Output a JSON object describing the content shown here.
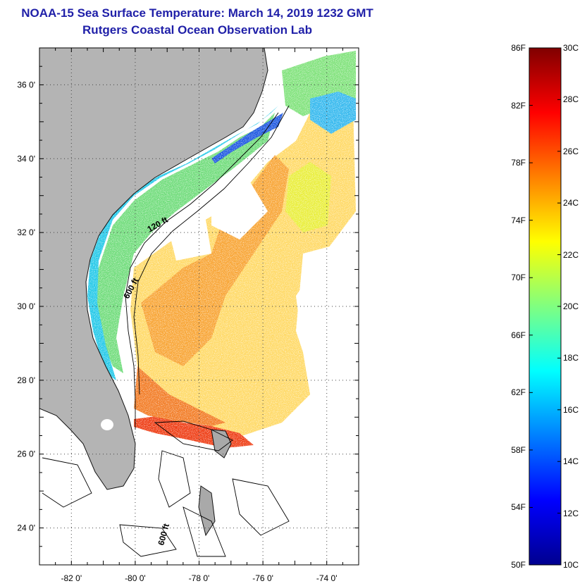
{
  "title": {
    "line1": "NOAA-15 Sea Surface Temperature:  March 14, 2019 1232 GMT",
    "line2": "Rutgers Coastal Ocean Observation Lab"
  },
  "map": {
    "lat_range": [
      23,
      37
    ],
    "lon_range": [
      -83,
      -73
    ],
    "lat_labels": [
      "36 0'",
      "34 0'",
      "32 0'",
      "30 0'",
      "28 0'",
      "26 0'",
      "24 0'"
    ],
    "lat_values": [
      36,
      34,
      32,
      30,
      28,
      26,
      24
    ],
    "lon_labels": [
      "-82 0'",
      "-80 0'",
      "-78 0'",
      "-76 0'",
      "-74 0'"
    ],
    "lon_values": [
      -82,
      -80,
      -78,
      -76,
      -74
    ],
    "isobath_labels": [
      "120 ft",
      "600 ft",
      "600 ft"
    ],
    "land_color": "#b4b4b4",
    "background_color": "#ffffff"
  },
  "colorbar": {
    "fahrenheit_labels": [
      "86F",
      "82F",
      "78F",
      "74F",
      "70F",
      "66F",
      "62F",
      "58F",
      "54F",
      "50F"
    ],
    "celsius_labels": [
      "30C",
      "28C",
      "26C",
      "24C",
      "22C",
      "20C",
      "18C",
      "16C",
      "14C",
      "12C",
      "10C"
    ],
    "colors": [
      "#00008f",
      "#0000ff",
      "#0080ff",
      "#00ffff",
      "#80ff80",
      "#ffff00",
      "#ff8000",
      "#ff0000",
      "#800000"
    ]
  }
}
